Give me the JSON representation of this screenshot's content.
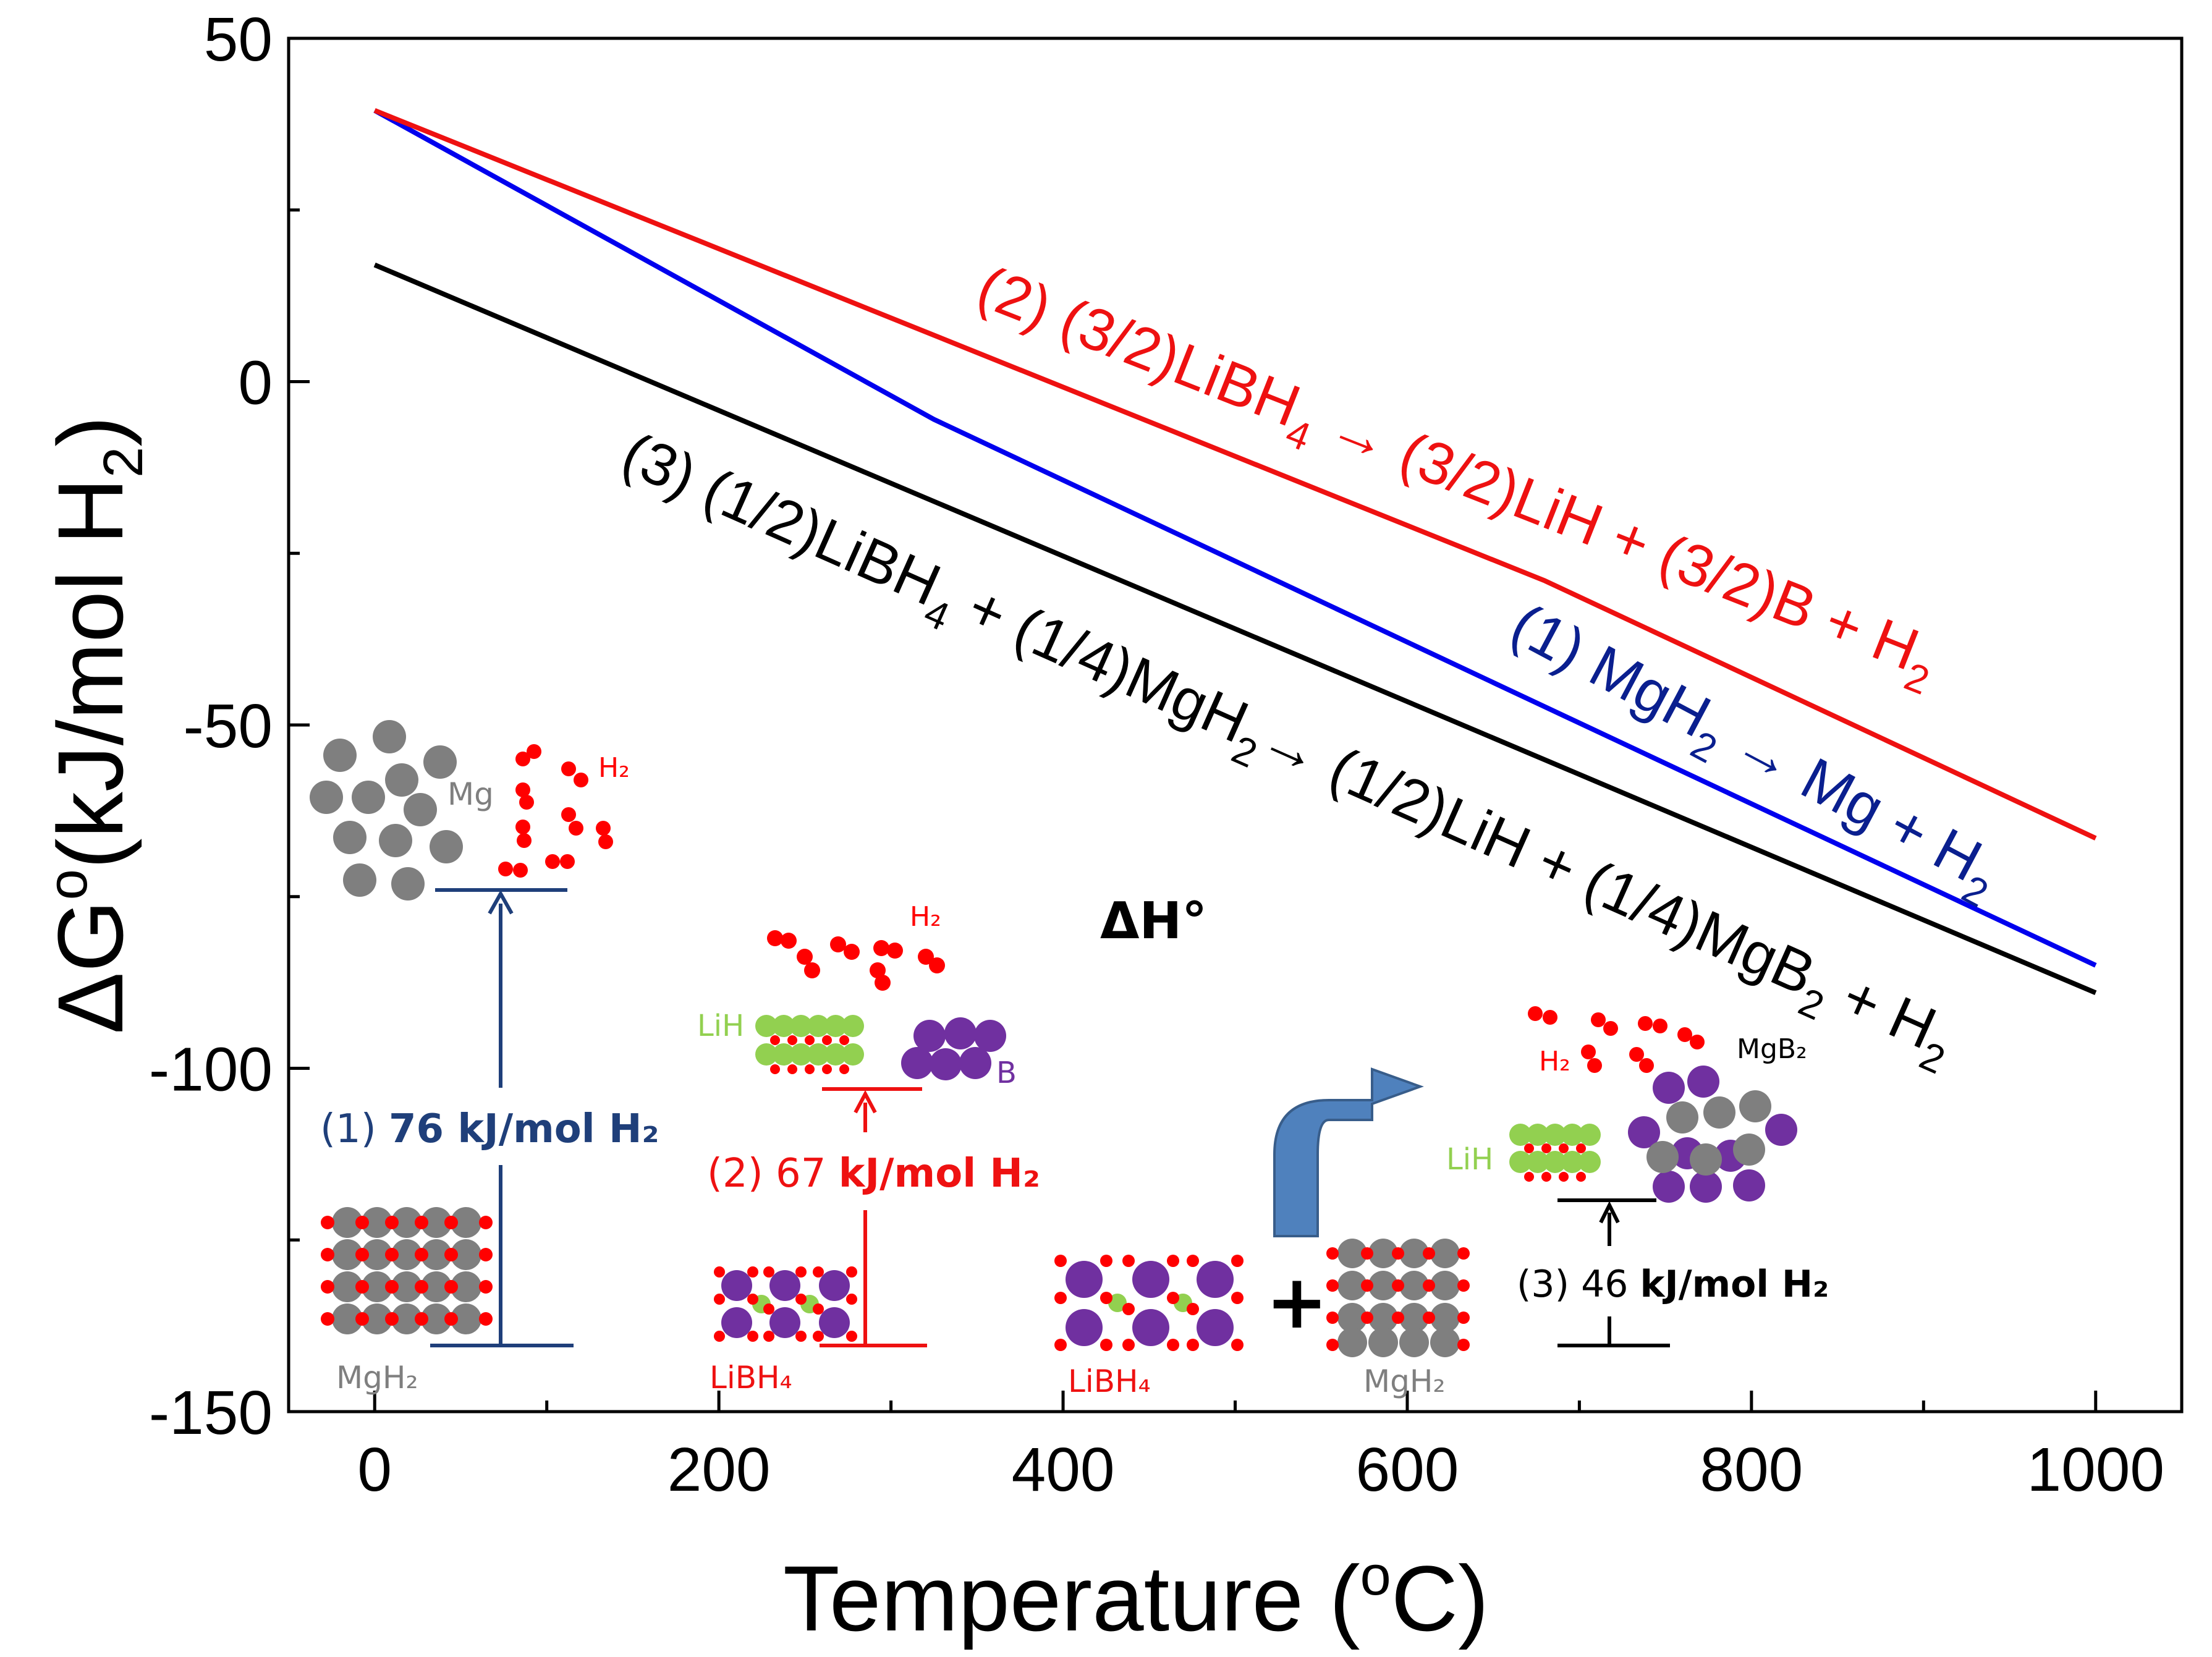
{
  "chart_data": {
    "type": "line",
    "xlabel": "Temperature (°C)",
    "xlabel_parts": {
      "before": "Temperature (",
      "superscript": "o",
      "after": "C)"
    },
    "ylabel_parts": {
      "delta": "Δ",
      "g": "G",
      "superscript": "o",
      "unit_open": "(kJ/mol H",
      "subscript": "2",
      "unit_close": ")"
    },
    "xlim": [
      -50,
      1050
    ],
    "ylim": [
      -150,
      50
    ],
    "x_ticks": [
      0,
      200,
      400,
      600,
      800,
      1000
    ],
    "y_ticks": [
      50,
      0,
      -50,
      -100,
      -150
    ],
    "x_tick_labels": [
      "0",
      "200",
      "400",
      "600",
      "800",
      "1000"
    ],
    "y_tick_labels": [
      "50",
      "0",
      "-50",
      "-100",
      "-150"
    ],
    "series": [
      {
        "name": "(1) MgH2 → Mg + H2",
        "label_parts": [
          "(1) MgH",
          "2",
          " → Mg + H",
          "2"
        ],
        "color": "#0000ee",
        "label_color": "#0a1f8f",
        "x": [
          0,
          325,
          660,
          1000
        ],
        "y": [
          39.5,
          -5.5,
          -45,
          -85
        ]
      },
      {
        "name": "(2) (3/2)LiBH4 → (3/2)LiH + (3/2)B + H2",
        "label_parts": [
          "(2) (3/2)LiBH",
          "4",
          " → (3/2)LiH + (3/2)B + H",
          "2"
        ],
        "color": "#ee1111",
        "label_color": "#ee1111",
        "x": [
          0,
          680,
          1000
        ],
        "y": [
          39.5,
          -29,
          -66.5
        ]
      },
      {
        "name": "(3) (1/2)LiBH4 + (1/4)MgH2 → (1/2)LiH + (1/4)MgB2 + H2",
        "label_line1": [
          "(3) (1/2)LiBH",
          "4",
          " + (1/4)MgH",
          "2",
          "→ (1/2)LiH + (1/4)MgB",
          "2",
          " + H",
          "2"
        ],
        "color": "#000000",
        "label_color": "#000000",
        "x": [
          0,
          1000
        ],
        "y": [
          17,
          -89
        ]
      }
    ]
  },
  "inset": {
    "title": "ΔH°",
    "step1": {
      "label_number": "(1)",
      "label_value": "76 kJ/mol H₂",
      "product_labels": {
        "metal": "Mg",
        "gas": "H₂"
      },
      "reactant_label": "MgH₂",
      "color": "#1f3f7a"
    },
    "step2": {
      "label_number": "(2) 67",
      "label_value": "kJ/mol H₂",
      "product_labels": {
        "hydride": "LiH",
        "boron": "B",
        "gas": "H₂"
      },
      "reactant_label": "LiBH₄",
      "color": "#ee1111"
    },
    "step3": {
      "label_number": "(3) 46",
      "label_value": "kJ/mol H₂",
      "plus_sign": "+",
      "product_labels": {
        "hydride": "LiH",
        "boride": "MgB₂",
        "gas": "H₂"
      },
      "reactant_labels": [
        "LiBH₄",
        "MgH₂"
      ],
      "color": "#000000"
    },
    "colors": {
      "mg_atom": "#7f7f7f",
      "hydrogen": "#ff0000",
      "lithium": "#92d050",
      "boron": "#7030a0",
      "arrow_fill": "#4f81bd"
    }
  }
}
